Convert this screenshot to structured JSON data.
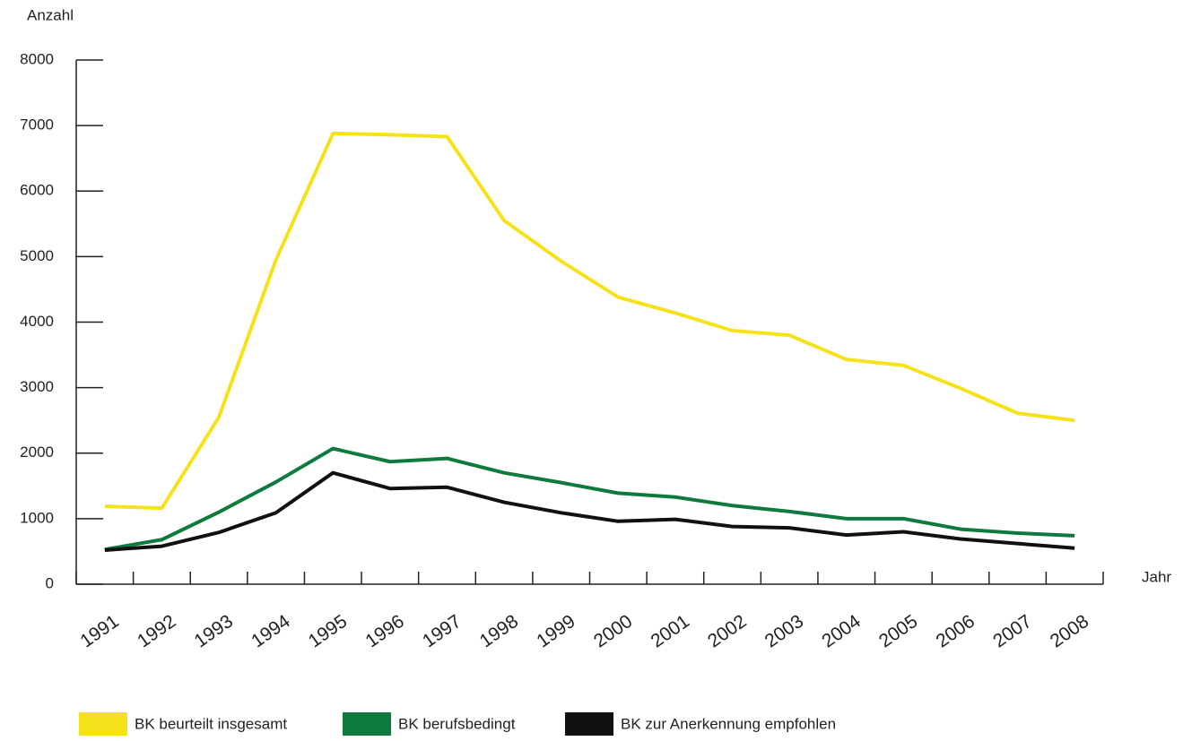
{
  "chart_data": {
    "type": "line",
    "y_label": "Anzahl",
    "x_label": "Jahr",
    "categories": [
      "1991",
      "1992",
      "1993",
      "1994",
      "1995",
      "1996",
      "1997",
      "1998",
      "1999",
      "2000",
      "2001",
      "2002",
      "2003",
      "2004",
      "2005",
      "2006",
      "2007",
      "2008"
    ],
    "series": [
      {
        "name": "BK beurteilt insgesamt",
        "color": "#f5e21a",
        "values": [
          1190,
          1160,
          2550,
          4950,
          6880,
          6860,
          6830,
          5550,
          4930,
          4380,
          4140,
          3870,
          3800,
          3430,
          3340,
          2990,
          2610,
          2500
        ]
      },
      {
        "name": "BK berufsbedingt",
        "color": "#0e7a3e",
        "values": [
          530,
          680,
          1100,
          1560,
          2070,
          1870,
          1920,
          1700,
          1550,
          1390,
          1330,
          1200,
          1110,
          1000,
          1000,
          840,
          780,
          740
        ]
      },
      {
        "name": "BK zur Anerkennung empfohlen",
        "color": "#111111",
        "values": [
          520,
          580,
          790,
          1090,
          1700,
          1460,
          1480,
          1250,
          1090,
          960,
          990,
          880,
          860,
          750,
          800,
          690,
          620,
          550
        ]
      }
    ],
    "ylim": [
      0,
      8000
    ],
    "yticks": [
      0,
      1000,
      2000,
      3000,
      4000,
      5000,
      6000,
      7000,
      8000
    ]
  }
}
